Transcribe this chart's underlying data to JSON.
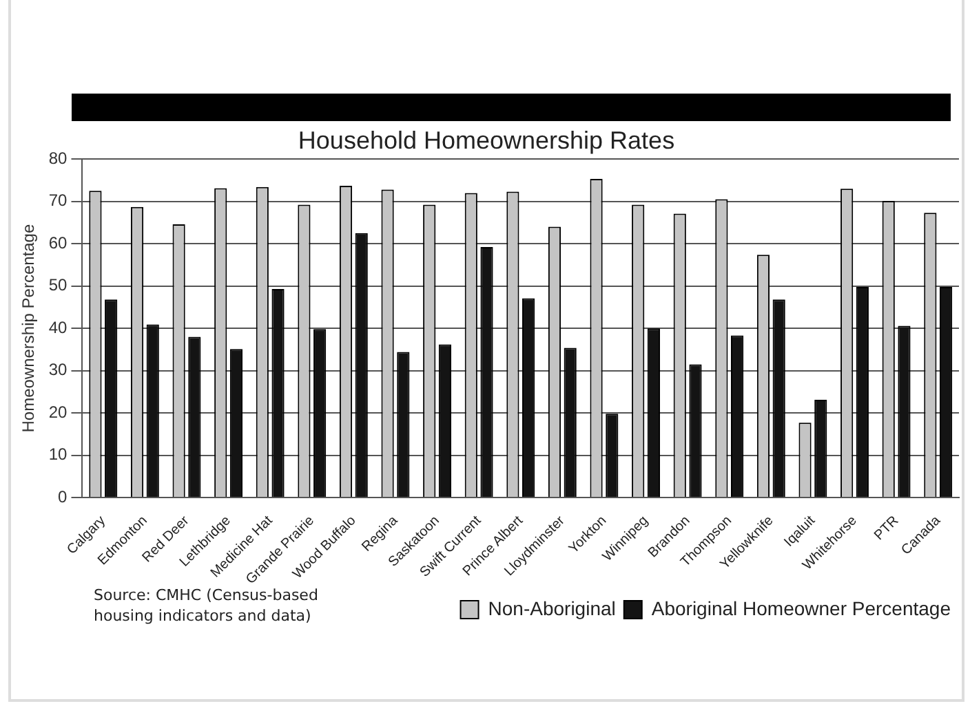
{
  "chart_data": {
    "type": "bar",
    "title": "Household Homeownership Rates",
    "ylabel": "Homeownership Percentage",
    "categories": [
      "Calgary",
      "Edmonton",
      "Red Deer",
      "Lethbridge",
      "Medicine Hat",
      "Grande Prairie",
      "Wood Buffalo",
      "Regina",
      "Saskatoon",
      "Swift Current",
      "Prince Albert",
      "Lloydminster",
      "Yorkton",
      "Winnipeg",
      "Brandon",
      "Thompson",
      "Yellowknife",
      "Iqaluit",
      "Whitehorse",
      "PTR",
      "Canada"
    ],
    "series": [
      {
        "name": "Non-Aboriginal",
        "color": "#c4c4c4",
        "values": [
          72.5,
          68.7,
          64.6,
          73.1,
          73.4,
          69.2,
          73.7,
          72.8,
          69.2,
          72.0,
          72.3,
          64.0,
          75.3,
          69.2,
          67.1,
          70.5,
          57.4,
          17.7,
          73.0,
          70.1,
          67.3
        ]
      },
      {
        "name": "Aboriginal Homeowner Percentage",
        "color": "#141414",
        "values": [
          46.8,
          40.9,
          38.0,
          35.1,
          49.3,
          39.8,
          62.5,
          34.4,
          36.2,
          59.2,
          47.1,
          35.4,
          19.8,
          40.0,
          31.5,
          38.3,
          46.8,
          23.1,
          49.8,
          40.6,
          49.8
        ]
      }
    ],
    "ylim": [
      0,
      80
    ],
    "yticks": [
      0,
      10,
      20,
      30,
      40,
      50,
      60,
      70,
      80
    ],
    "grid": "y",
    "legend": "bottom",
    "annotations": [
      "Source: CMHC (Census-based housing indicators and data)"
    ]
  }
}
